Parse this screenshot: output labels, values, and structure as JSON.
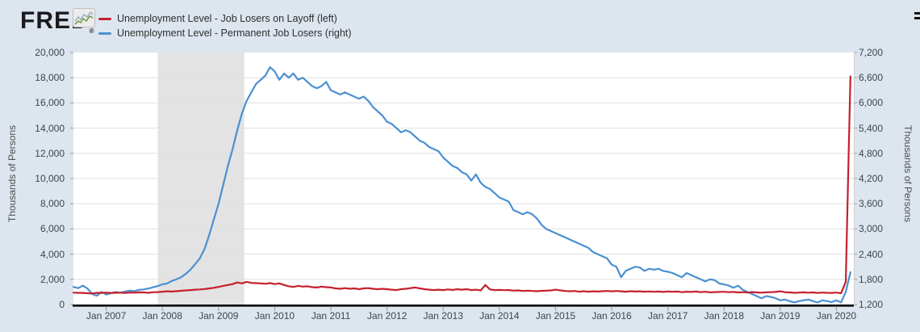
{
  "header": {
    "logo_text": "FRED",
    "registered_mark": "®"
  },
  "legend": [
    {
      "label": "Unemployment Level - Job Losers on Layoff (left)",
      "color": "#c5202e"
    },
    {
      "label": "Unemployment Level - Permanent Job Losers (right)",
      "color": "#4a90d2"
    }
  ],
  "chart_data": {
    "type": "line",
    "title": "",
    "frequency": "monthly",
    "x_range": {
      "start": "Jun 2006",
      "end": "Apr 2020"
    },
    "x_tick_labels": [
      "Jan 2007",
      "Jan 2008",
      "Jan 2009",
      "Jan 2010",
      "Jan 2011",
      "Jan 2012",
      "Jan 2013",
      "Jan 2014",
      "Jan 2015",
      "Jan 2016",
      "Jan 2017",
      "Jan 2018",
      "Jan 2019",
      "Jan 2020"
    ],
    "left_axis": {
      "label": "Thousands of Persons",
      "min": 0,
      "max": 20000,
      "tick_labels": [
        "0",
        "2,000",
        "4,000",
        "6,000",
        "8,000",
        "10,000",
        "12,000",
        "14,000",
        "16,000",
        "18,000",
        "20,000"
      ]
    },
    "right_axis": {
      "label": "Thousands of Persons",
      "min": 1200,
      "max": 7200,
      "tick_labels": [
        "1,200",
        "1,800",
        "2,400",
        "3,000",
        "3,600",
        "4,200",
        "4,800",
        "5,400",
        "6,000",
        "6,600",
        "7,200"
      ]
    },
    "recession_shading": {
      "start": "Dec 2007",
      "end": "Jun 2009",
      "color": "#e3e3e3"
    },
    "grid": "horizontal",
    "legend_position": "top-left",
    "series": [
      {
        "name": "Unemployment Level - Job Losers on Layoff",
        "axis": "left",
        "color": "#c5202e",
        "values": [
          940,
          930,
          920,
          900,
          880,
          930,
          920,
          950,
          920,
          930,
          940,
          920,
          950,
          940,
          970,
          960,
          930,
          980,
          990,
          1020,
          1050,
          1030,
          1060,
          1090,
          1120,
          1150,
          1180,
          1200,
          1230,
          1280,
          1330,
          1400,
          1480,
          1550,
          1620,
          1750,
          1680,
          1800,
          1720,
          1700,
          1680,
          1650,
          1700,
          1620,
          1680,
          1550,
          1450,
          1400,
          1480,
          1420,
          1450,
          1380,
          1350,
          1420,
          1380,
          1350,
          1280,
          1250,
          1300,
          1250,
          1280,
          1220,
          1280,
          1300,
          1250,
          1220,
          1250,
          1220,
          1180,
          1150,
          1220,
          1250,
          1300,
          1350,
          1280,
          1220,
          1180,
          1150,
          1180,
          1150,
          1200,
          1160,
          1220,
          1180,
          1220,
          1150,
          1180,
          1120,
          1550,
          1200,
          1150,
          1160,
          1140,
          1150,
          1100,
          1120,
          1080,
          1100,
          1080,
          1060,
          1090,
          1100,
          1120,
          1180,
          1120,
          1080,
          1050,
          1080,
          1020,
          1060,
          1020,
          1050,
          1030,
          1060,
          1080,
          1050,
          1080,
          1050,
          1020,
          1060,
          1030,
          1050,
          1020,
          1040,
          1010,
          1030,
          1000,
          1040,
          1010,
          1030,
          980,
          1020,
          1000,
          1030,
          990,
          1010,
          970,
          990,
          1000,
          1010,
          980,
          1000,
          960,
          980,
          950,
          990,
          960,
          940,
          970,
          980,
          1000,
          1050,
          980,
          960,
          930,
          950,
          970,
          940,
          960,
          920,
          950,
          930,
          920,
          950,
          900,
          1800,
          18100
        ]
      },
      {
        "name": "Unemployment Level - Permanent Job Losers",
        "axis": "right",
        "color": "#4a90d2",
        "values": [
          1620,
          1590,
          1650,
          1580,
          1450,
          1410,
          1500,
          1440,
          1470,
          1500,
          1480,
          1510,
          1530,
          1520,
          1550,
          1560,
          1580,
          1610,
          1640,
          1680,
          1700,
          1760,
          1800,
          1850,
          1930,
          2030,
          2160,
          2300,
          2520,
          2850,
          3230,
          3600,
          4050,
          4500,
          4900,
          5350,
          5750,
          6050,
          6250,
          6450,
          6550,
          6650,
          6850,
          6750,
          6550,
          6700,
          6600,
          6700,
          6550,
          6600,
          6500,
          6400,
          6350,
          6400,
          6500,
          6300,
          6250,
          6200,
          6250,
          6200,
          6150,
          6100,
          6150,
          6050,
          5900,
          5800,
          5700,
          5550,
          5500,
          5400,
          5300,
          5350,
          5300,
          5200,
          5100,
          5050,
          4950,
          4900,
          4850,
          4700,
          4600,
          4500,
          4450,
          4350,
          4300,
          4150,
          4300,
          4100,
          4000,
          3950,
          3850,
          3750,
          3700,
          3650,
          3450,
          3400,
          3350,
          3400,
          3350,
          3250,
          3100,
          3000,
          2950,
          2900,
          2850,
          2800,
          2750,
          2700,
          2650,
          2600,
          2550,
          2450,
          2400,
          2350,
          2300,
          2150,
          2100,
          1850,
          2000,
          2050,
          2100,
          2080,
          2000,
          2050,
          2030,
          2050,
          2000,
          1980,
          1950,
          1900,
          1850,
          1950,
          1900,
          1850,
          1800,
          1750,
          1800,
          1780,
          1700,
          1680,
          1650,
          1600,
          1650,
          1550,
          1500,
          1450,
          1400,
          1350,
          1400,
          1380,
          1350,
          1300,
          1320,
          1280,
          1250,
          1280,
          1300,
          1320,
          1280,
          1250,
          1300,
          1280,
          1260,
          1300,
          1250,
          1500,
          1970
        ]
      }
    ]
  }
}
